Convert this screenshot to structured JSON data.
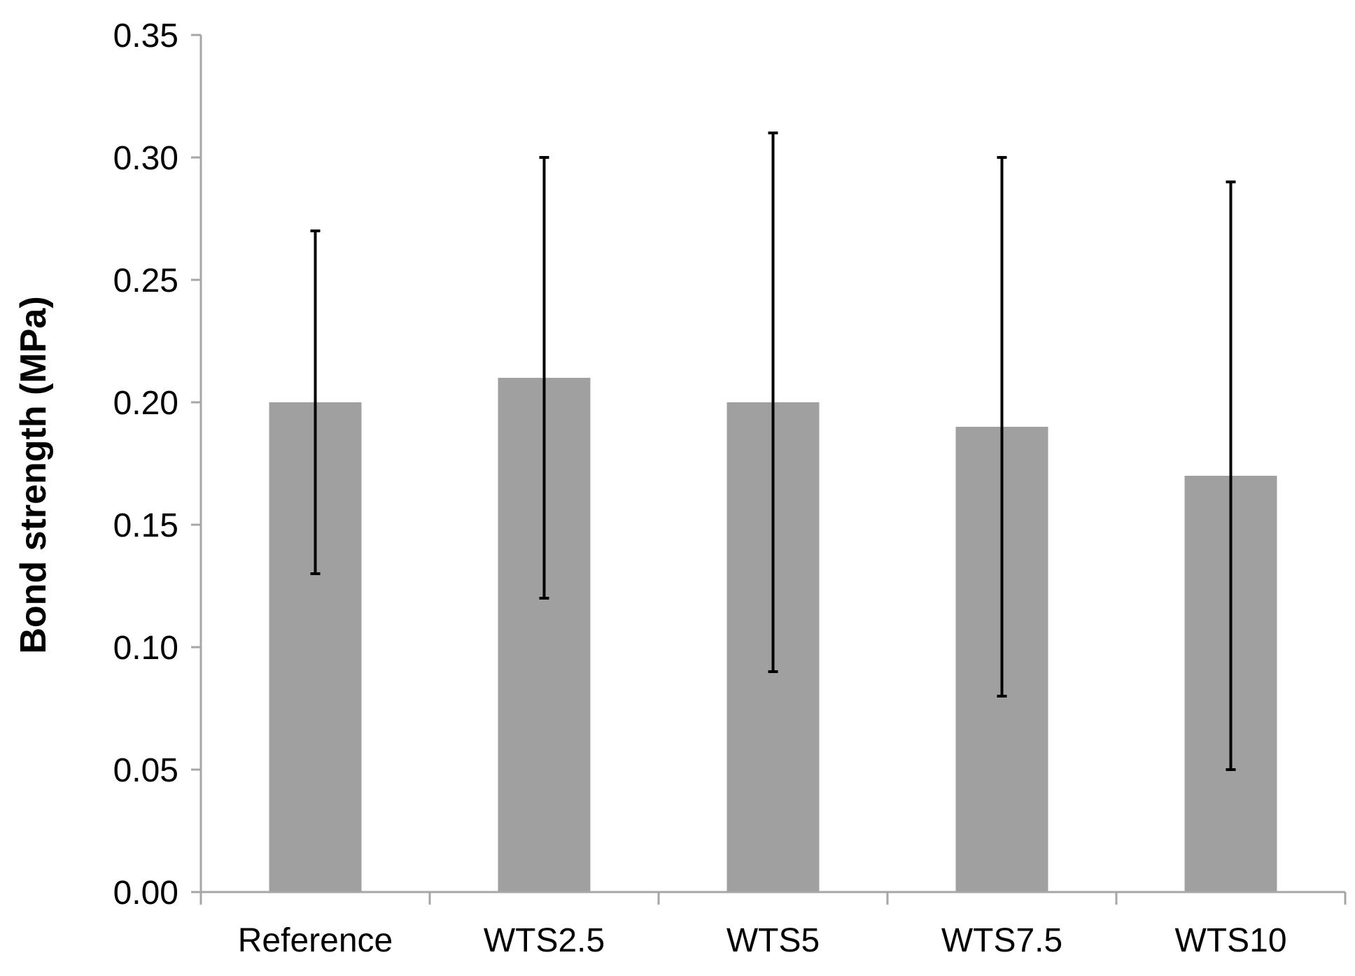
{
  "chart_data": {
    "type": "bar",
    "title": "",
    "xlabel": "",
    "ylabel": "Bond strength (MPa)",
    "categories": [
      "Reference",
      "WTS2.5",
      "WTS5",
      "WTS7.5",
      "WTS10"
    ],
    "series": [
      {
        "name": "Bond strength",
        "values": [
          0.2,
          0.21,
          0.2,
          0.19,
          0.17
        ],
        "error_low": [
          0.13,
          0.12,
          0.09,
          0.08,
          0.05
        ],
        "error_high": [
          0.27,
          0.3,
          0.31,
          0.3,
          0.29
        ]
      }
    ],
    "ylim": [
      0,
      0.35
    ],
    "yticks": [
      "0.00",
      "0.05",
      "0.10",
      "0.15",
      "0.20",
      "0.25",
      "0.30",
      "0.35"
    ],
    "grid": false,
    "legend": "none"
  },
  "colors": {
    "bar": "#a0a0a0",
    "axis": "#a6a6a6",
    "error_bar": "#000000"
  }
}
